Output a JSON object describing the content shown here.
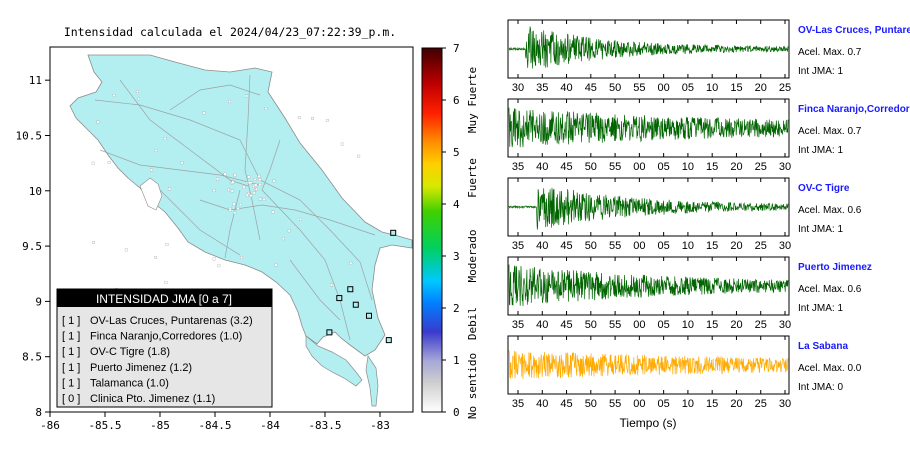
{
  "map": {
    "title": "Intensidad calculada el 2024/04/23_07:22:39_p.m.",
    "lon_ticks": [
      "-86",
      "-85.5",
      "-85",
      "-84.5",
      "-84",
      "-83.5",
      "-83"
    ],
    "lat_ticks": [
      "11",
      "10.5",
      "10",
      "9.5",
      "9",
      "8.5",
      "8"
    ],
    "xlim": [
      -86,
      -82.7
    ],
    "ylim": [
      8,
      11.3
    ],
    "land_color": "#b3eef0",
    "legend_title": "INTENSIDAD JMA [0 a 7]",
    "legend_items": [
      {
        "jma": "[ 1 ]",
        "label": "OV-Las Cruces, Puntarenas (3.2)"
      },
      {
        "jma": "[ 1 ]",
        "label": "Finca Naranjo,Corredores (1.0)"
      },
      {
        "jma": "[ 1 ]",
        "label": "OV-C Tigre (1.8)"
      },
      {
        "jma": "[ 1 ]",
        "label": "Puerto Jimenez (1.2)"
      },
      {
        "jma": "[ 1 ]",
        "label": "Talamanca (1.0)"
      },
      {
        "jma": "[ 0 ]",
        "label": "Clinica Pto. Jimenez (1.1)"
      }
    ],
    "stations": [
      {
        "lon": -82.88,
        "lat": 9.62
      },
      {
        "lon": -83.27,
        "lat": 9.11
      },
      {
        "lon": -83.22,
        "lat": 8.97
      },
      {
        "lon": -83.37,
        "lat": 9.03
      },
      {
        "lon": -83.1,
        "lat": 8.87
      },
      {
        "lon": -82.92,
        "lat": 8.65
      },
      {
        "lon": -83.46,
        "lat": 8.72
      }
    ]
  },
  "colorbar": {
    "ticks": [
      "0",
      "1",
      "2",
      "3",
      "4",
      "5",
      "6",
      "7"
    ],
    "labels": [
      "No sentido",
      "Debil",
      "Moderado",
      "Fuerte",
      "Muy Fuerte"
    ]
  },
  "traces": {
    "xlabel": "Tiempo (s)",
    "label_color": "#1a1aff",
    "panels": [
      {
        "name": "OV-Las Cruces, Puntarenas",
        "accel": "Acel. Max. 0.7",
        "jma": "Int JMA: 1",
        "color": "#006400",
        "ticks": [
          "30",
          "35",
          "40",
          "45",
          "50",
          "55",
          "00",
          "05",
          "10",
          "15",
          "20",
          "25"
        ],
        "onset": 0.06,
        "amp": 0.9,
        "decay": 3.5,
        "seed": 1
      },
      {
        "name": "Finca Naranjo,Corredores",
        "accel": "Acel. Max. 0.7",
        "jma": "Int JMA: 1",
        "color": "#006400",
        "ticks": [
          "35",
          "40",
          "45",
          "50",
          "55",
          "00",
          "05",
          "10",
          "15",
          "20",
          "25",
          "30"
        ],
        "onset": 0.0,
        "amp": 0.75,
        "decay": 1.0,
        "seed": 2
      },
      {
        "name": "OV-C Tigre",
        "accel": "Acel. Max. 0.6",
        "jma": "Int JMA: 1",
        "color": "#006400",
        "ticks": [
          "35",
          "40",
          "45",
          "50",
          "55",
          "00",
          "05",
          "10",
          "15",
          "20",
          "25",
          "30"
        ],
        "onset": 0.1,
        "amp": 0.9,
        "decay": 3.0,
        "seed": 3
      },
      {
        "name": "Puerto Jimenez",
        "accel": "Acel. Max. 0.6",
        "jma": "Int JMA: 1",
        "color": "#006400",
        "ticks": [
          "35",
          "40",
          "45",
          "50",
          "55",
          "00",
          "05",
          "10",
          "15",
          "20",
          "25",
          "30"
        ],
        "onset": 0.0,
        "amp": 0.8,
        "decay": 1.5,
        "seed": 4
      },
      {
        "name": "La Sabana",
        "accel": "Acel. Max. 0.0",
        "jma": "Int JMA: 0",
        "color": "#ffaa00",
        "ticks": [
          "35",
          "40",
          "45",
          "50",
          "55",
          "00",
          "05",
          "10",
          "15",
          "20",
          "25",
          "30"
        ],
        "onset": 0.0,
        "amp": 0.55,
        "decay": 0.8,
        "seed": 5
      }
    ]
  }
}
